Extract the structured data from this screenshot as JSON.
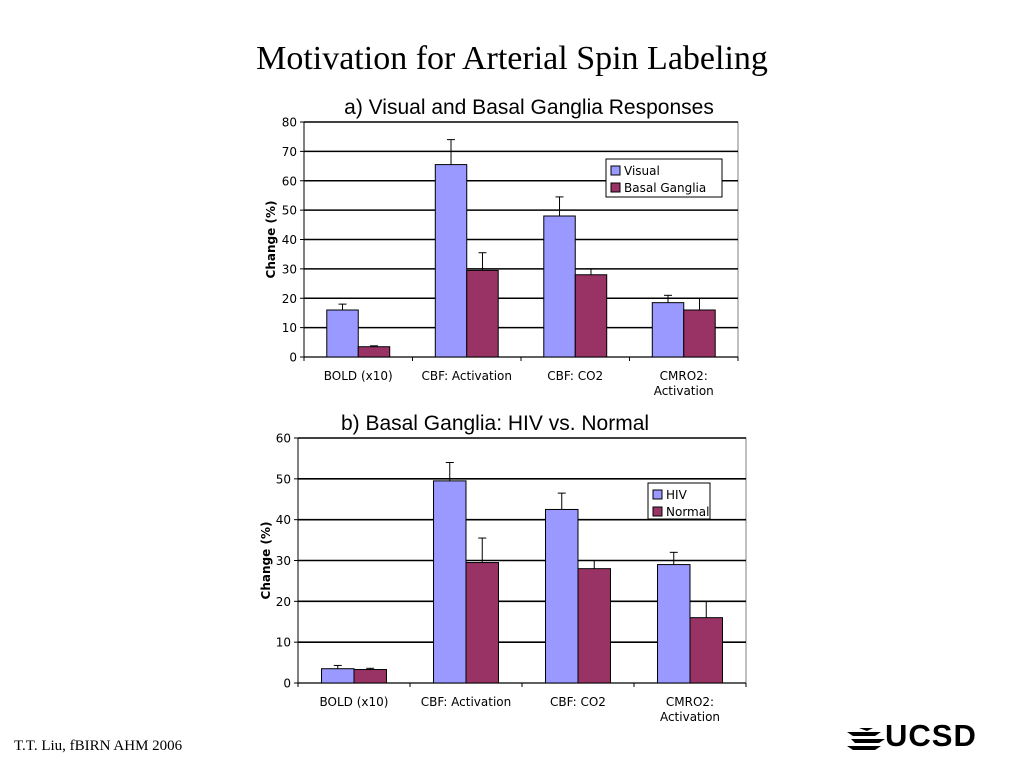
{
  "slide": {
    "title": "Motivation for Arterial Spin Labeling",
    "footer": "T.T. Liu, fBIRN AHM 2006",
    "logo_text": "UCSD"
  },
  "chart_data": [
    {
      "type": "bar",
      "title": "a) Visual and Basal Ganglia Responses",
      "ylabel": "Change (%)",
      "xlabel": "",
      "categories": [
        "BOLD (x10)",
        "CBF: Activation",
        "CBF: CO2",
        "CMRO2: Activation"
      ],
      "series": [
        {
          "name": "Visual",
          "values": [
            16,
            65.5,
            48,
            18.5
          ],
          "errors": [
            2,
            8.5,
            6.5,
            2.5
          ],
          "color": "#9999ff"
        },
        {
          "name": "Basal Ganglia",
          "values": [
            3.5,
            29.5,
            28,
            16
          ],
          "errors": [
            0.3,
            6,
            2,
            4
          ],
          "color": "#993366"
        }
      ],
      "ylim": [
        0,
        80
      ],
      "yticks": [
        0,
        10,
        20,
        30,
        40,
        50,
        60,
        70,
        80
      ],
      "grid": true,
      "legend": "top-right"
    },
    {
      "type": "bar",
      "title": "b) Basal Ganglia: HIV vs. Normal",
      "ylabel": "Change (%)",
      "xlabel": "",
      "categories": [
        "BOLD (x10)",
        "CBF: Activation",
        "CBF: CO2",
        "CMRO2: Activation"
      ],
      "series": [
        {
          "name": "HIV",
          "values": [
            3.5,
            49.5,
            42.5,
            29
          ],
          "errors": [
            0.8,
            4.5,
            4,
            3
          ],
          "color": "#9999ff"
        },
        {
          "name": "Normal",
          "values": [
            3.3,
            29.5,
            28,
            16
          ],
          "errors": [
            0.3,
            6,
            2,
            4
          ],
          "color": "#993366"
        }
      ],
      "ylim": [
        0,
        60
      ],
      "yticks": [
        0,
        10,
        20,
        30,
        40,
        50,
        60
      ],
      "grid": true,
      "legend": "top-right"
    }
  ]
}
